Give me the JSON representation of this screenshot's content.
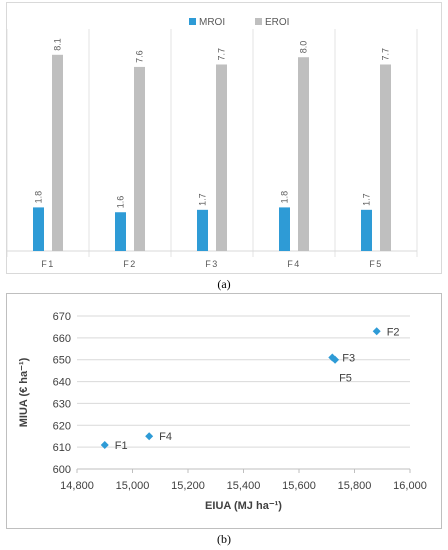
{
  "chart_data": [
    {
      "type": "bar",
      "categories": [
        "F1",
        "F2",
        "F3",
        "F4",
        "F5"
      ],
      "series": [
        {
          "name": "MROI",
          "color": "#2e9bd6",
          "values": [
            1.8,
            1.6,
            1.7,
            1.8,
            1.7
          ]
        },
        {
          "name": "EROI",
          "color": "#bfbfbf",
          "values": [
            8.1,
            7.6,
            7.7,
            8.0,
            7.7
          ]
        }
      ],
      "data_labels": {
        "MROI": [
          "1.8",
          "1.6",
          "1.7",
          "1.8",
          "1.7"
        ],
        "EROI": [
          "8.1",
          "7.6",
          "7.7",
          "8.0",
          "7.7"
        ]
      },
      "ylim": [
        0,
        9
      ],
      "legend_position": "top-center",
      "gridlines": "vertical category separators",
      "caption": "(a)"
    },
    {
      "type": "scatter",
      "points": [
        {
          "label": "F1",
          "x": 14900,
          "y": 611
        },
        {
          "label": "F2",
          "x": 15880,
          "y": 663
        },
        {
          "label": "F3",
          "x": 15720,
          "y": 651
        },
        {
          "label": "F4",
          "x": 15060,
          "y": 615
        },
        {
          "label": "F5",
          "x": 15730,
          "y": 650
        }
      ],
      "marker_color": "#2e9bd6",
      "xlabel": "EIUA (MJ ha⁻¹)",
      "ylabel": "MIUA (€ ha⁻¹)",
      "xlim": [
        14800,
        16000
      ],
      "ylim": [
        600,
        670
      ],
      "x_ticks": [
        "14,800",
        "15,000",
        "15,200",
        "15,400",
        "15,600",
        "15,800",
        "16,000"
      ],
      "y_ticks": [
        "600",
        "610",
        "620",
        "630",
        "640",
        "650",
        "660",
        "670"
      ],
      "grid": "horizontal",
      "caption": "(b)"
    }
  ]
}
